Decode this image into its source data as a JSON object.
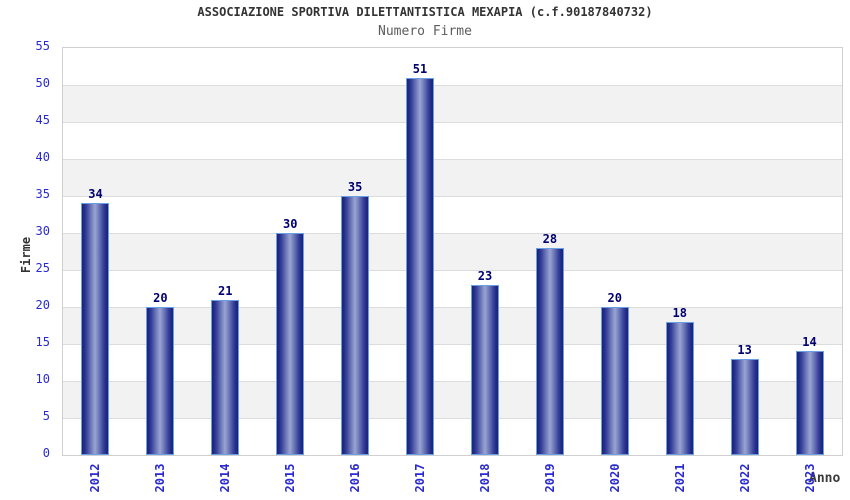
{
  "chart_data": {
    "type": "bar",
    "title": "ASSOCIAZIONE SPORTIVA DILETTANTISTICA MEXAPIA (c.f.90187840732)",
    "subtitle": "Numero Firme",
    "xlabel": "Anno",
    "ylabel": "Firme",
    "categories": [
      "2012",
      "2013",
      "2014",
      "2015",
      "2016",
      "2017",
      "2018",
      "2019",
      "2020",
      "2021",
      "2022",
      "2023"
    ],
    "values": [
      34,
      20,
      21,
      30,
      35,
      51,
      23,
      28,
      20,
      18,
      13,
      14
    ],
    "ylim": [
      0,
      55
    ],
    "ytick_step": 5,
    "yticks": [
      0,
      5,
      10,
      15,
      20,
      25,
      30,
      35,
      40,
      45,
      50,
      55
    ],
    "grid": "horizontal alternating bands every 5 units, white and light gray",
    "legend": "none",
    "colors": {
      "tick_label": "#2a2ad0",
      "value_label": "#000070",
      "bar_edge": "#1c2479",
      "bar_center": "#9aa4d2",
      "bar_border": "#6b9fe4",
      "band_gray": "#f2f2f2",
      "band_white": "#ffffff",
      "plot_border": "#d0d0d0",
      "title": "#333333",
      "subtitle": "#5d5d5d",
      "axis_title": "#333333"
    }
  }
}
